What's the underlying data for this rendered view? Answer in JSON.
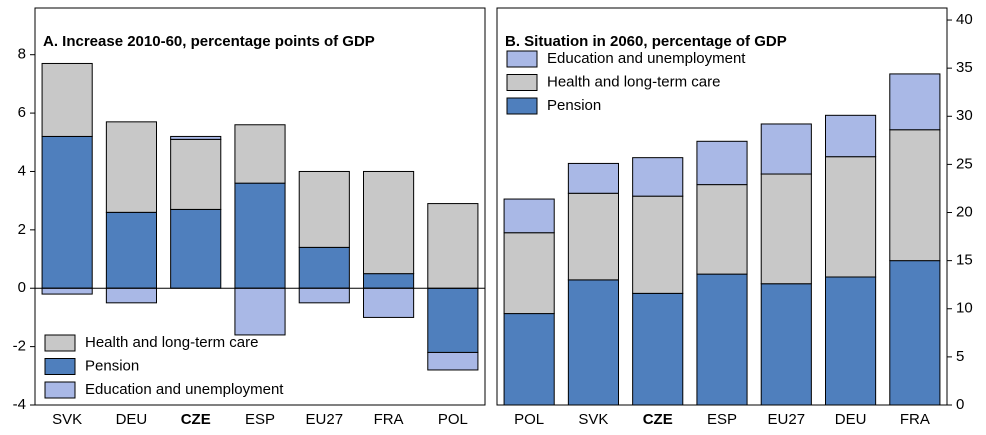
{
  "chart_data": [
    {
      "type": "bar",
      "stacked": true,
      "title": "A. Increase 2010-60, percentage points of GDP",
      "categories": [
        "SVK",
        "DEU",
        "CZE",
        "ESP",
        "EU27",
        "FRA",
        "POL"
      ],
      "series": [
        {
          "name": "Health and long-term care",
          "color": "#c8c8c8",
          "values": [
            2.5,
            3.1,
            2.4,
            2.0,
            2.6,
            3.5,
            2.9
          ]
        },
        {
          "name": "Pension",
          "color": "#4f7fbd",
          "values": [
            5.2,
            2.6,
            2.7,
            3.6,
            1.4,
            0.5,
            -2.2
          ]
        },
        {
          "name": "Education and unemployment",
          "color": "#a9b8e6",
          "values": [
            -0.2,
            -0.5,
            0.1,
            -1.6,
            -0.5,
            -1.0,
            -0.6
          ]
        }
      ],
      "ylim": [
        -4,
        9.6
      ],
      "yticks": [
        -4,
        -2,
        0,
        2,
        4,
        6,
        8
      ],
      "legend": "lower left"
    },
    {
      "type": "bar",
      "stacked": true,
      "title": "B. Situation in 2060, percentage of GDP",
      "categories": [
        "POL",
        "SVK",
        "CZE",
        "ESP",
        "EU27",
        "DEU",
        "FRA"
      ],
      "series": [
        {
          "name": "Education and unemployment",
          "color": "#a9b8e6",
          "values": [
            3.5,
            3.1,
            4.0,
            4.5,
            5.2,
            4.3,
            5.8
          ]
        },
        {
          "name": "Health and long-term care",
          "color": "#c8c8c8",
          "values": [
            8.4,
            9.0,
            10.1,
            9.3,
            11.4,
            12.5,
            13.6
          ]
        },
        {
          "name": "Pension",
          "color": "#4f7fbd",
          "values": [
            9.5,
            13.0,
            11.6,
            13.6,
            12.6,
            13.3,
            15.0
          ]
        }
      ],
      "ylim": [
        0,
        41.25
      ],
      "yticks": [
        0,
        5,
        10,
        15,
        20,
        25,
        30,
        35,
        40
      ],
      "legend": "upper left"
    }
  ]
}
